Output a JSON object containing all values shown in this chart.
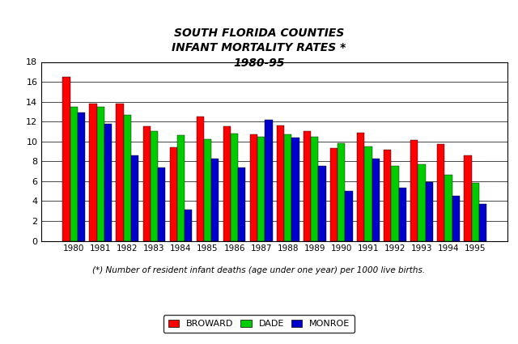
{
  "title": "SOUTH FLORIDA COUNTIES\nINFANT MORTALITY RATES *\n1980-95",
  "years": [
    1980,
    1981,
    1982,
    1983,
    1984,
    1985,
    1986,
    1987,
    1988,
    1989,
    1990,
    1991,
    1992,
    1993,
    1994,
    1995
  ],
  "broward": [
    16.5,
    13.8,
    13.8,
    11.5,
    9.4,
    12.5,
    11.5,
    10.7,
    11.6,
    11.0,
    9.3,
    10.9,
    9.2,
    10.1,
    9.7,
    8.6
  ],
  "dade": [
    13.5,
    13.5,
    12.7,
    11.0,
    10.6,
    10.2,
    10.8,
    10.5,
    10.7,
    10.5,
    9.8,
    9.5,
    7.5,
    7.7,
    6.6,
    5.8
  ],
  "monroe": [
    12.9,
    11.8,
    8.6,
    7.4,
    3.1,
    8.3,
    7.4,
    12.2,
    10.4,
    7.5,
    5.0,
    8.3,
    5.3,
    5.9,
    4.5,
    3.7
  ],
  "broward_color": "#FF0000",
  "dade_color": "#00CC00",
  "monroe_color": "#0000CC",
  "ylim": [
    0,
    18
  ],
  "yticks": [
    0,
    2,
    4,
    6,
    8,
    10,
    12,
    14,
    16,
    18
  ],
  "footnote": "(*) Number of resident infant deaths (age under one year) per 1000 live births.",
  "bg_color": "#FFFFFF",
  "plot_bg_color": "#FFFFFF",
  "bar_width": 0.28,
  "grid_color": "#000000",
  "legend_labels": [
    "BROWARD",
    "DADE",
    "MONROE"
  ]
}
